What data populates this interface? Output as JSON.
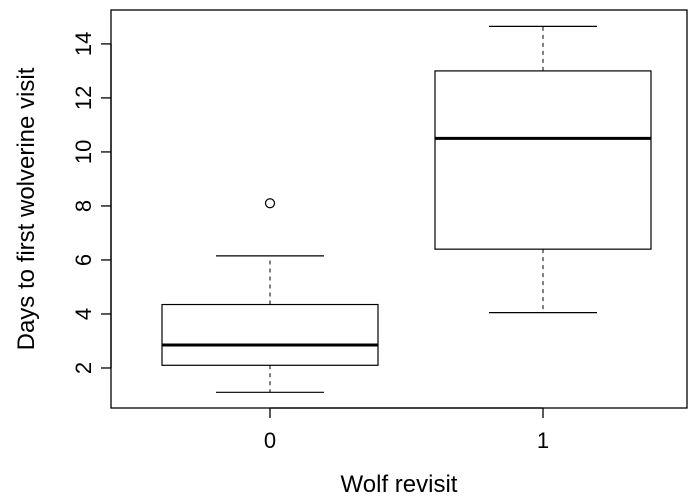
{
  "chart_data": {
    "type": "boxplot",
    "title": "",
    "xlabel": "Wolf revisit",
    "ylabel": "Days to first wolverine visit",
    "categories": [
      "0",
      "1"
    ],
    "y_ticks": [
      2,
      4,
      6,
      8,
      10,
      12,
      14
    ],
    "ylim": [
      1.0,
      14.7
    ],
    "boxes": [
      {
        "category": "0",
        "whisker_low": 1.1,
        "q1": 2.1,
        "median": 2.85,
        "q3": 4.35,
        "whisker_high": 6.15,
        "outliers": [
          8.1
        ]
      },
      {
        "category": "1",
        "whisker_low": 4.05,
        "q1": 6.4,
        "median": 10.5,
        "q3": 13.0,
        "whisker_high": 14.65,
        "outliers": []
      }
    ],
    "grid": false,
    "legend": "none"
  }
}
